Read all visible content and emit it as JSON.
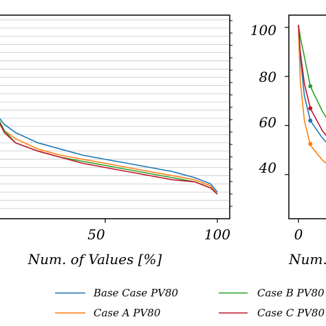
{
  "chart_data": [
    {
      "type": "line",
      "xlabel": "Num. of Values [%]",
      "x_ticks": [
        50,
        100
      ],
      "xlim": [
        0,
        100
      ],
      "ylim": [
        0,
        100
      ],
      "grid": "horizontal",
      "series": [
        {
          "name": "Base Case PV80",
          "color": "#1f77b4",
          "x": [
            0,
            5,
            10,
            20,
            30,
            40,
            50,
            60,
            70,
            80,
            90,
            97,
            100
          ],
          "y": [
            53,
            46,
            42,
            37,
            34,
            31,
            29,
            27,
            25,
            23,
            20,
            17,
            13
          ]
        },
        {
          "name": "Case A PV80",
          "color": "#ff7f0e",
          "x": [
            0,
            5,
            10,
            20,
            30,
            40,
            50,
            60,
            70,
            80,
            90,
            97,
            100
          ],
          "y": [
            51,
            43,
            39,
            34,
            31,
            29,
            27,
            25,
            23,
            21,
            19,
            16,
            12
          ]
        },
        {
          "name": "Case B PV80",
          "color": "#2ca02c",
          "x": [
            0,
            5,
            10,
            20,
            30,
            40,
            50,
            60,
            70,
            80,
            90,
            97,
            100
          ],
          "y": [
            54,
            43,
            37,
            33,
            30,
            28,
            26,
            24,
            22,
            20,
            18,
            15,
            12
          ]
        },
        {
          "name": "Case C PV80",
          "color": "#c0142a",
          "x": [
            0,
            5,
            10,
            20,
            30,
            40,
            50,
            60,
            70,
            80,
            90,
            97,
            100
          ],
          "y": [
            53,
            42,
            37,
            33,
            30,
            27,
            25,
            23,
            21,
            19,
            18,
            15,
            12
          ]
        }
      ]
    },
    {
      "type": "line",
      "xlabel": "Num.",
      "x_ticks": [
        0
      ],
      "y_ticks": [
        40,
        60,
        80,
        100
      ],
      "xlim": [
        0,
        10
      ],
      "ylim": [
        22,
        105
      ],
      "series": [
        {
          "name": "Base Case PV80",
          "color": "#1f77b4",
          "x": [
            0,
            0.3,
            1,
            2,
            4,
            6,
            10
          ],
          "y": [
            101,
            88,
            72,
            62,
            55,
            50,
            45
          ],
          "marker": {
            "x": 2,
            "y": 62
          }
        },
        {
          "name": "Case A PV80",
          "color": "#ff7f0e",
          "x": [
            0,
            0.3,
            1,
            2,
            4,
            6,
            10
          ],
          "y": [
            99,
            78,
            62,
            52,
            46,
            42,
            38
          ],
          "marker": {
            "x": 2,
            "y": 52.5
          }
        },
        {
          "name": "Case B PV80",
          "color": "#2ca02c",
          "x": [
            0,
            0.3,
            1,
            2,
            4,
            6,
            10
          ],
          "y": [
            101,
            96,
            88,
            76,
            66,
            58,
            50
          ],
          "marker": {
            "x": 2,
            "y": 76
          }
        },
        {
          "name": "Case C PV80",
          "color": "#c0142a",
          "x": [
            0,
            0.3,
            1,
            2,
            4,
            6,
            10
          ],
          "y": [
            101,
            90,
            77,
            67,
            58,
            52,
            46
          ],
          "marker": {
            "x": 2,
            "y": 67
          }
        }
      ]
    }
  ],
  "legend": {
    "placement": "bottom",
    "items": [
      {
        "label": "Base Case PV80",
        "color": "#1f77b4"
      },
      {
        "label": "Case B PV80",
        "color": "#2ca02c"
      },
      {
        "label": "Case A PV80",
        "color": "#ff7f0e"
      },
      {
        "label": "Case C PV80",
        "color": "#c0142a"
      }
    ]
  }
}
